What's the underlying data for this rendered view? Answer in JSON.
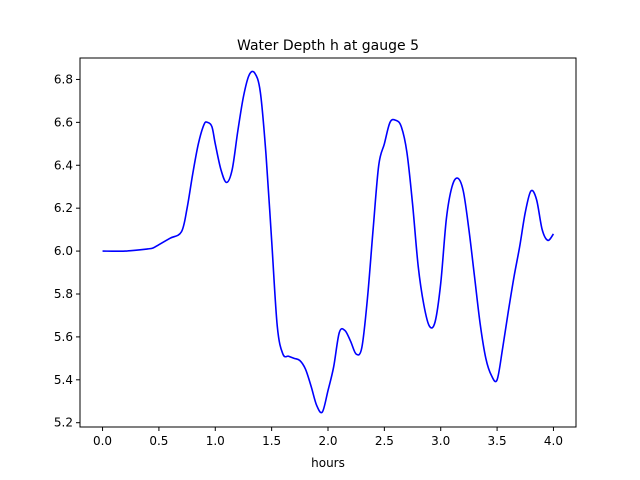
{
  "chart_data": {
    "type": "line",
    "title": "Water Depth h at gauge 5",
    "xlabel": "hours",
    "ylabel": "",
    "xlim": [
      -0.2,
      4.2
    ],
    "ylim": [
      5.18,
      6.9
    ],
    "xticks": [
      "0.0",
      "0.5",
      "1.0",
      "1.5",
      "2.0",
      "2.5",
      "3.0",
      "3.5",
      "4.0"
    ],
    "yticks": [
      "5.2",
      "5.4",
      "5.6",
      "5.8",
      "6.0",
      "6.2",
      "6.4",
      "6.6",
      "6.8"
    ],
    "grid": false,
    "legend": "none",
    "series": [
      {
        "color": "#0000ff",
        "x": [
          0.0,
          0.2,
          0.4,
          0.45,
          0.5,
          0.6,
          0.7,
          0.75,
          0.8,
          0.85,
          0.9,
          0.93,
          0.97,
          1.0,
          1.05,
          1.1,
          1.15,
          1.2,
          1.25,
          1.3,
          1.35,
          1.4,
          1.45,
          1.5,
          1.55,
          1.6,
          1.65,
          1.7,
          1.75,
          1.8,
          1.85,
          1.9,
          1.95,
          2.0,
          2.05,
          2.1,
          2.15,
          2.2,
          2.25,
          2.3,
          2.35,
          2.4,
          2.45,
          2.5,
          2.55,
          2.6,
          2.65,
          2.7,
          2.75,
          2.8,
          2.85,
          2.9,
          2.95,
          3.0,
          3.05,
          3.1,
          3.15,
          3.2,
          3.25,
          3.3,
          3.35,
          3.4,
          3.45,
          3.5,
          3.55,
          3.6,
          3.65,
          3.7,
          3.75,
          3.8,
          3.85,
          3.9,
          3.95,
          4.0
        ],
        "y": [
          6.0,
          6.0,
          6.01,
          6.015,
          6.03,
          6.06,
          6.09,
          6.2,
          6.36,
          6.5,
          6.59,
          6.6,
          6.58,
          6.5,
          6.38,
          6.32,
          6.38,
          6.56,
          6.72,
          6.82,
          6.83,
          6.74,
          6.45,
          6.05,
          5.65,
          5.52,
          5.51,
          5.5,
          5.49,
          5.45,
          5.37,
          5.28,
          5.25,
          5.35,
          5.46,
          5.62,
          5.63,
          5.58,
          5.52,
          5.55,
          5.78,
          6.1,
          6.4,
          6.5,
          6.6,
          6.61,
          6.58,
          6.46,
          6.22,
          5.93,
          5.75,
          5.65,
          5.67,
          5.85,
          6.15,
          6.3,
          6.34,
          6.28,
          6.1,
          5.88,
          5.66,
          5.5,
          5.42,
          5.4,
          5.55,
          5.72,
          5.88,
          6.02,
          6.18,
          6.28,
          6.24,
          6.1,
          6.05,
          6.08
        ]
      }
    ]
  }
}
